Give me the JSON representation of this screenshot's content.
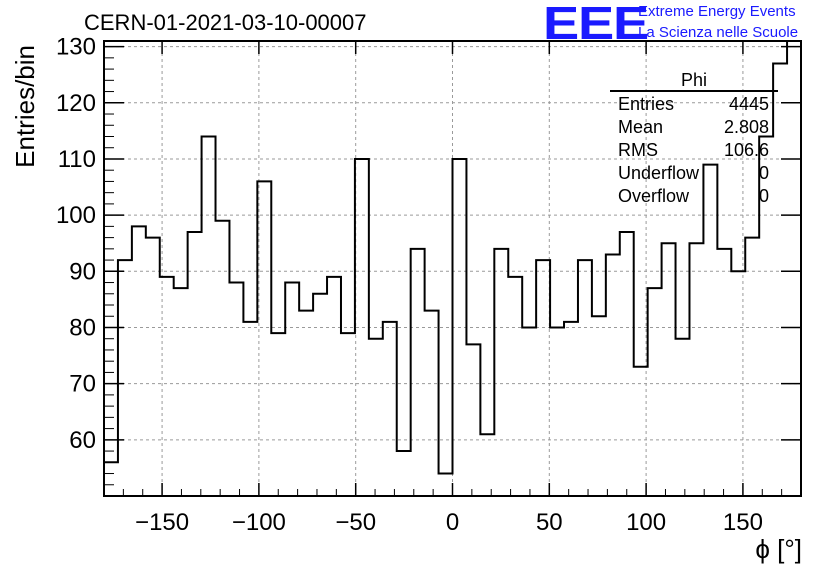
{
  "header": {
    "run_title": "CERN-01-2021-03-10-00007",
    "logo_mark": "EEE",
    "logo_line1": "Extreme Energy Events",
    "logo_line2": "La Scienza nelle Scuole"
  },
  "stats_box": {
    "name": "Phi",
    "rows": [
      {
        "label": "Entries",
        "value": "4445"
      },
      {
        "label": "Mean",
        "value": "2.808"
      },
      {
        "label": "RMS",
        "value": "106.6"
      },
      {
        "label": "Underflow",
        "value": "0"
      },
      {
        "label": "Overflow",
        "value": "0"
      }
    ]
  },
  "colors": {
    "logo": "#1a1aff",
    "line": "#000000",
    "grid": "#9a9a9a"
  },
  "chart_data": {
    "type": "bar",
    "style": "step-histogram",
    "title": "CERN-01-2021-03-10-00007",
    "xlabel": "ϕ [°]",
    "ylabel": "Entries/bin",
    "xlim": [
      -180,
      180
    ],
    "ylim": [
      50,
      131
    ],
    "grid": true,
    "bin_edges": [
      -180,
      -172.8,
      -165.6,
      -158.4,
      -151.2,
      -144,
      -136.8,
      -129.6,
      -122.4,
      -115.2,
      -108,
      -100.8,
      -93.6,
      -86.4,
      -79.2,
      -72,
      -64.8,
      -57.6,
      -50.4,
      -43.2,
      -36,
      -28.8,
      -21.6,
      -14.4,
      -7.2,
      0,
      7.2,
      14.4,
      21.6,
      28.8,
      36,
      43.2,
      50.4,
      57.6,
      64.8,
      72,
      79.2,
      86.4,
      93.6,
      100.8,
      108,
      115.2,
      122.4,
      129.6,
      136.8,
      144,
      151.2,
      158.4,
      165.6,
      172.8,
      180
    ],
    "values": [
      56,
      92,
      98,
      96,
      89,
      87,
      97,
      114,
      99,
      88,
      81,
      106,
      79,
      88,
      83,
      86,
      89,
      79,
      110,
      78,
      81,
      58,
      94,
      83,
      54,
      110,
      77,
      61,
      94,
      89,
      80,
      92,
      80,
      81,
      92,
      82,
      93,
      97,
      73,
      87,
      95,
      78,
      95,
      109,
      94,
      90,
      96,
      114,
      127,
      131
    ],
    "x_ticks": [
      -150,
      -100,
      -50,
      0,
      50,
      100,
      150
    ],
    "x_tick_labels": [
      "−150",
      "−100",
      "−50",
      "0",
      "50",
      "100",
      "150"
    ],
    "y_ticks": [
      60,
      70,
      80,
      90,
      100,
      110,
      120,
      130
    ],
    "y_tick_labels": [
      "60",
      "70",
      "80",
      "90",
      "100",
      "110",
      "120",
      "130"
    ]
  }
}
